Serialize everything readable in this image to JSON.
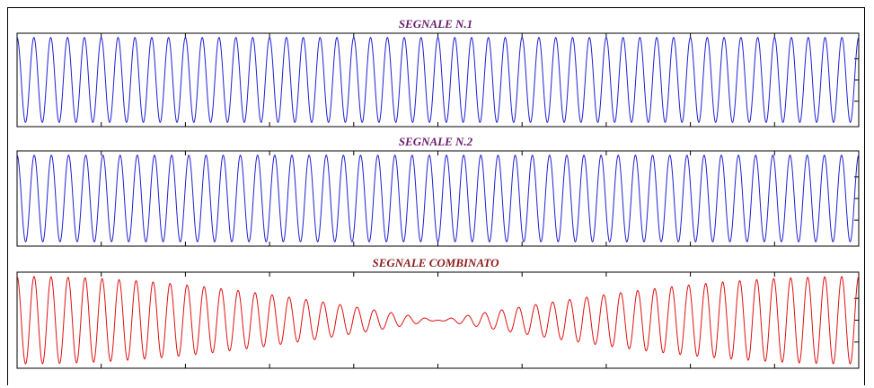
{
  "chart_data": [
    {
      "type": "line",
      "title": "SEGNALE N.1",
      "title_color": "#6a1b6e",
      "line_color": "#1f1fd6",
      "xlim": [
        0,
        1
      ],
      "ylim": [
        -1.1,
        1.1
      ],
      "x_ticks": [
        0,
        0.1,
        0.2,
        0.3,
        0.4,
        0.5,
        0.6,
        0.7,
        0.8,
        0.9,
        1.0
      ],
      "y_ticks": [
        -0.5,
        0,
        0.5
      ],
      "grid": false,
      "series": [
        {
          "signal": "sine",
          "amplitude": 1.0,
          "cycles": 50
        }
      ]
    },
    {
      "type": "line",
      "title": "SEGNALE N.2",
      "title_color": "#6a1b6e",
      "line_color": "#1f1fd6",
      "xlim": [
        0,
        1
      ],
      "ylim": [
        -1.1,
        1.1
      ],
      "x_ticks": [
        0,
        0.1,
        0.2,
        0.3,
        0.4,
        0.5,
        0.6,
        0.7,
        0.8,
        0.9,
        1.0
      ],
      "y_ticks": [
        -0.5,
        0,
        0.5
      ],
      "grid": false,
      "series": [
        {
          "signal": "sine",
          "amplitude": 1.0,
          "cycles": 49
        }
      ]
    },
    {
      "type": "line",
      "title": "SEGNALE COMBINATO",
      "title_color": "#8b1a1a",
      "line_color": "#e01010",
      "xlim": [
        0,
        1
      ],
      "ylim": [
        -2.2,
        2.2
      ],
      "x_ticks": [
        0,
        0.1,
        0.2,
        0.3,
        0.4,
        0.5,
        0.6,
        0.7,
        0.8,
        0.9,
        1.0
      ],
      "y_ticks": [
        -1,
        0,
        1
      ],
      "grid": false,
      "series": [
        {
          "signal": "sum",
          "components": [
            50,
            49
          ],
          "amplitude": 1.0
        }
      ]
    }
  ]
}
